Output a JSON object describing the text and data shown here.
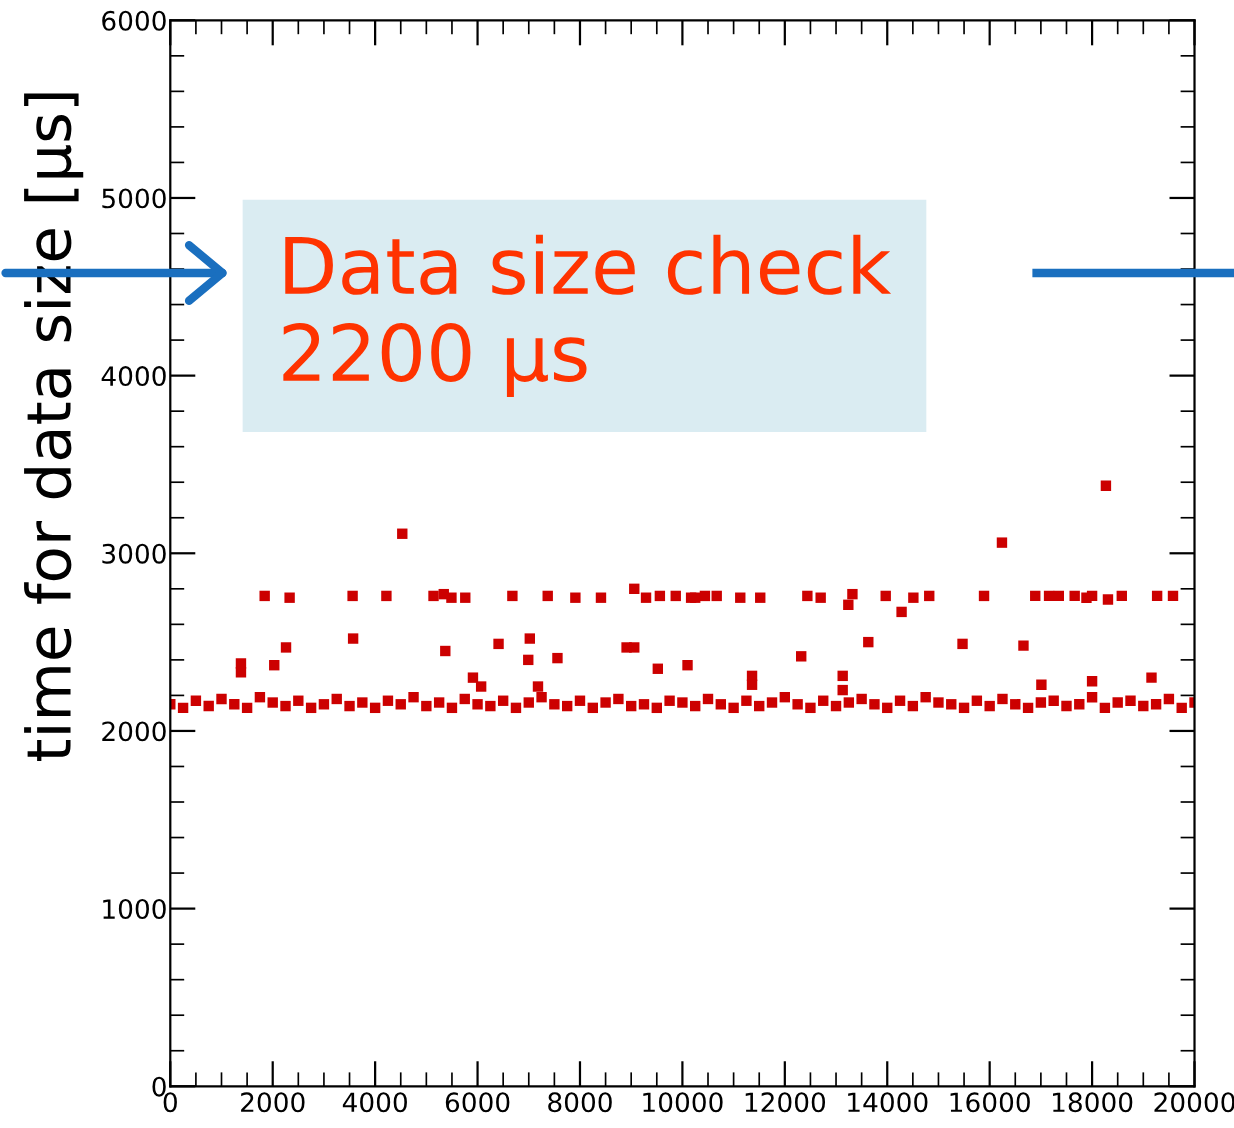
{
  "chart_data": {
    "type": "scatter",
    "ylabel": "time for data size [μs]",
    "xlim": [
      0,
      20000
    ],
    "ylim": [
      0,
      6000
    ],
    "xticks": [
      0,
      2000,
      4000,
      6000,
      8000,
      10000,
      12000,
      14000,
      16000,
      18000,
      20000
    ],
    "yticks": [
      0,
      1000,
      2000,
      3000,
      4000,
      5000,
      6000
    ],
    "grid": false,
    "legend": false,
    "marker": "square",
    "annotations": [
      "Data size check\n2200 μs"
    ],
    "series": [
      {
        "color": "#cc0000",
        "x": [
          0,
          250,
          500,
          750,
          1000,
          1250,
          1500,
          1750,
          2000,
          2250,
          2500,
          2750,
          3000,
          3250,
          3500,
          3750,
          4000,
          4250,
          4500,
          4750,
          5000,
          5250,
          5500,
          5750,
          6000,
          6250,
          6500,
          6750,
          7000,
          7250,
          7500,
          7750,
          8000,
          8250,
          8500,
          8750,
          9000,
          9250,
          9500,
          9750,
          10000,
          10250,
          10500,
          10750,
          11000,
          11250,
          11500,
          11750,
          12000,
          12250,
          12500,
          12750,
          13000,
          13250,
          13500,
          13750,
          14000,
          14250,
          14500,
          14750,
          15000,
          15250,
          15500,
          15750,
          16000,
          16250,
          16500,
          16750,
          17000,
          17250,
          17500,
          17750,
          18000,
          18250,
          18500,
          18750,
          19000,
          19250,
          19500,
          19750,
          20000,
          1843,
          2330,
          3560,
          4220,
          4530,
          5140,
          5340,
          5490,
          5760,
          6680,
          7370,
          7910,
          8410,
          9060,
          9290,
          9560,
          9870,
          10170,
          10250,
          10440,
          10670,
          11130,
          11520,
          12440,
          12700,
          13240,
          13320,
          13970,
          14280,
          14510,
          14820,
          15890,
          16240,
          16890,
          17160,
          17350,
          17660,
          17890,
          18000,
          18270,
          18310,
          18580,
          19270,
          19580,
          1380,
          1380,
          2030,
          2260,
          3570,
          5370,
          5910,
          6070,
          6410,
          6990,
          7020,
          7180,
          7560,
          8910,
          9060,
          9520,
          10100,
          11360,
          11360,
          12320,
          13130,
          13130,
          13630,
          15470,
          16660,
          17010,
          18000,
          19160
        ],
        "values": [
          2150,
          2130,
          2170,
          2140,
          2180,
          2150,
          2130,
          2190,
          2160,
          2140,
          2170,
          2130,
          2150,
          2180,
          2140,
          2160,
          2130,
          2170,
          2150,
          2190,
          2140,
          2160,
          2130,
          2180,
          2150,
          2140,
          2170,
          2130,
          2160,
          2190,
          2150,
          2140,
          2170,
          2130,
          2160,
          2180,
          2140,
          2150,
          2130,
          2170,
          2160,
          2140,
          2180,
          2150,
          2130,
          2170,
          2140,
          2160,
          2190,
          2150,
          2130,
          2170,
          2140,
          2160,
          2180,
          2150,
          2130,
          2170,
          2140,
          2190,
          2160,
          2150,
          2130,
          2170,
          2140,
          2180,
          2150,
          2130,
          2160,
          2170,
          2140,
          2150,
          2190,
          2130,
          2160,
          2170,
          2140,
          2150,
          2180,
          2130,
          2160,
          2760,
          2750,
          2760,
          2760,
          3110,
          2760,
          2770,
          2750,
          2750,
          2760,
          2760,
          2750,
          2750,
          2800,
          2750,
          2760,
          2760,
          2750,
          2750,
          2760,
          2760,
          2750,
          2750,
          2760,
          2750,
          2710,
          2770,
          2760,
          2670,
          2750,
          2760,
          2760,
          3060,
          2760,
          2760,
          2760,
          2760,
          2750,
          2760,
          3380,
          2740,
          2760,
          2760,
          2760,
          2380,
          2330,
          2370,
          2470,
          2520,
          2450,
          2300,
          2250,
          2490,
          2400,
          2520,
          2250,
          2410,
          2470,
          2470,
          2350,
          2370,
          2310,
          2260,
          2420,
          2310,
          2230,
          2500,
          2490,
          2480,
          2260,
          2280,
          2300
        ]
      }
    ]
  }
}
